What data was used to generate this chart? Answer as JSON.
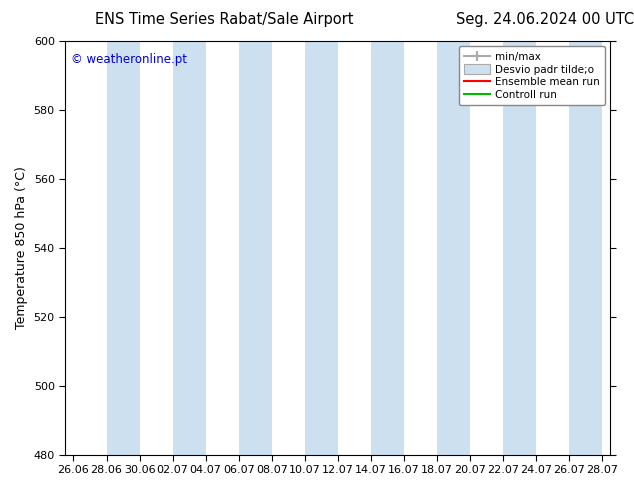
{
  "title_left": "ENS Time Series Rabat/Sale Airport",
  "title_right": "Seg. 24.06.2024 00 UTC",
  "ylabel": "Temperature 850 hPa (°C)",
  "watermark": "© weatheronline.pt",
  "watermark_color": "#0000cc",
  "ylim": [
    480,
    600
  ],
  "yticks": [
    480,
    500,
    520,
    540,
    560,
    580,
    600
  ],
  "xtick_labels": [
    "26.06",
    "28.06",
    "30.06",
    "02.07",
    "04.07",
    "06.07",
    "08.07",
    "10.07",
    "12.07",
    "14.07",
    "16.07",
    "18.07",
    "20.07",
    "22.07",
    "24.07",
    "26.07",
    "28.07"
  ],
  "background_color": "#ffffff",
  "plot_bg_color": "#ffffff",
  "shaded_band_color": "#cce0f0",
  "legend_labels": [
    "min/max",
    "Desvio padr tilde;o",
    "Ensemble mean run",
    "Controll run"
  ],
  "legend_colors": [
    "#aaaaaa",
    "#bbccdd",
    "#ff0000",
    "#00aa00"
  ],
  "title_fontsize": 10.5,
  "axis_fontsize": 9,
  "tick_fontsize": 8,
  "watermark_fontsize": 8.5
}
